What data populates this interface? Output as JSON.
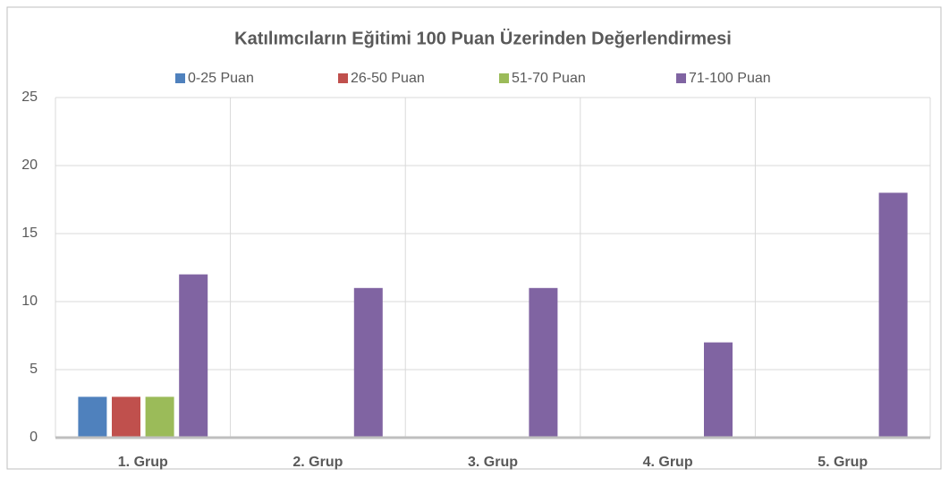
{
  "chart_data": {
    "type": "bar",
    "title": "Katılımcıların Eğitimi 100 Puan Üzerinden Değerlendirmesi",
    "categories": [
      "1. Grup",
      "2. Grup",
      "3. Grup",
      "4. Grup",
      "5. Grup"
    ],
    "series": [
      {
        "name": "0-25 Puan",
        "color": "#4f81bd",
        "values": [
          3,
          0,
          0,
          0,
          0
        ]
      },
      {
        "name": "26-50 Puan",
        "color": "#c0504d",
        "values": [
          3,
          0,
          0,
          0,
          0
        ]
      },
      {
        "name": "51-70 Puan",
        "color": "#9bbb59",
        "values": [
          3,
          0,
          0,
          0,
          0
        ]
      },
      {
        "name": "71-100 Puan",
        "color": "#8064a2",
        "values": [
          12,
          11,
          11,
          7,
          18
        ]
      }
    ],
    "ylim": [
      0,
      25
    ],
    "yticks": [
      0,
      5,
      10,
      15,
      20,
      25
    ],
    "grid": true,
    "legend": "top"
  }
}
